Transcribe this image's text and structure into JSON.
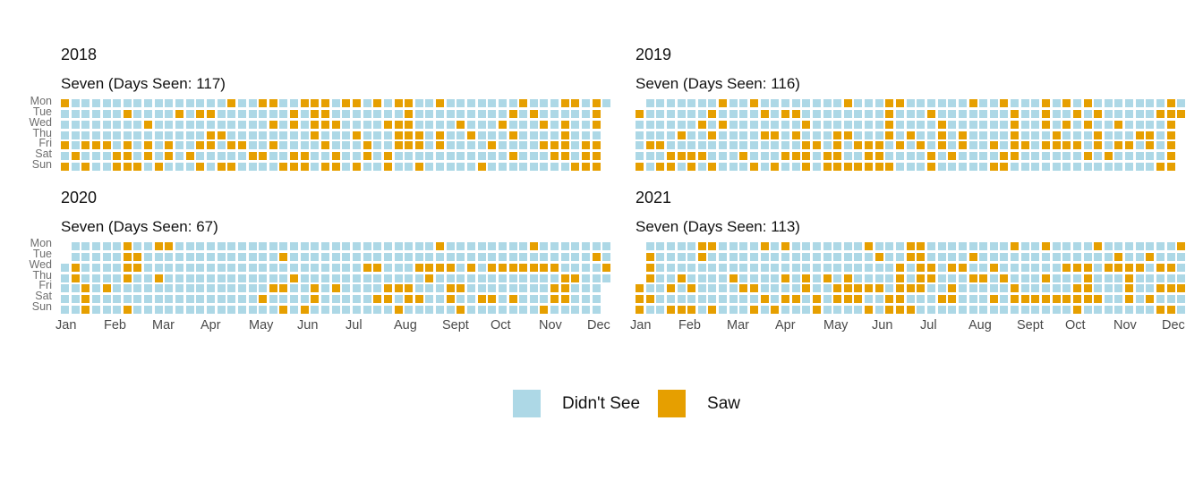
{
  "page": {
    "background": "#ffffff"
  },
  "colors": {
    "didnt_see": "#ADD8E6",
    "saw": "#E69F00"
  },
  "chart_data": {
    "type": "heatmap",
    "description": "Calendar heatmap, one panel per year; rows are weekdays Mon-Sun, columns are weeks 1-53; 1 = Saw (orange), 0 = Didn't See (light blue), . = no such day in that year",
    "weekday_rows": [
      "Mon",
      "Tue",
      "Wed",
      "Thu",
      "Fri",
      "Sat",
      "Sun"
    ],
    "months": [
      "Jan",
      "Feb",
      "Mar",
      "Apr",
      "May",
      "Jun",
      "Jul",
      "Aug",
      "Sept",
      "Oct",
      "Nov",
      "Dec"
    ],
    "weeks_per_year": 53,
    "legend": [
      {
        "label": "Didn't See",
        "color": "#ADD8E6"
      },
      {
        "label": "Saw",
        "color": "#E69F00"
      }
    ],
    "years": [
      {
        "year": "2018",
        "subtitle": "Seven (Days Seen: 117)",
        "days_seen": 117,
        "grid": [
          "10000000000000001001100111011010110010000000100011010",
          "0000001000010110000000101100000001000000000101000001.",
          "0000000010000000000010101110000111000010001000101001.",
          "0000000000000011000000001000100011101001000100001000.",
          "1011101010100110110010000100010011101000010000111011.",
          "0100011010101000001100110010010100000000000100011011.",
          "1010011101000101100001110110100100100000100000000111."
        ]
      },
      {
        "year": "2019",
        "subtitle": "Seven (Days Seen: 116)",
        "days_seen": 116,
        "grid": [
          ".0000000100100000000100011000000100100010101000000010",
          "10000001000010110000000010001000000010010010100000111",
          "0000001010000000100000001000010000001001010100100001.",
          "0000100100001101000110001010010100001000100010001101.",
          "0110000000000000110101110101010100101101111010110101.",
          "0001111000100011101100110000101000011000000101000001.",
          "1011010100010100101111111000100000110000000000000011."
        ]
      },
      {
        "year": "2020",
        "subtitle": "Seven (Days Seen: 67)",
        "days_seen": 67,
        "grid": [
          ".0000010011000000000000000000000000010000000010000000",
          ".0000011000000000000010000000000000000000000000000010",
          "01000011000000000000000000000110001111010111111100001",
          "01000010010000000000001000000000000100000000000011000",
          "0010100000000000000011001010000111000110000000011000.",
          "0010000000000000000100001000001101100100110100011000.",
          "0010001000000000000001010000000010000010000000100000."
        ]
      },
      {
        "year": "2021",
        "subtitle": "Seven (Days Seen: 113)",
        "days_seen": 113,
        "grid": [
          ".0000011000010100000001000110000000010010000100000001",
          ".1000010000000000000000100110000100000000000001001000",
          ".1000000000000000000000001011011001000000111011110110",
          ".1001000010000101010100001011000110100010001000100000",
          "10010100001100001001111101110010000010000011000100111",
          "11000000000010110101110011000110001011111111100101000",
          "10011101000101000100001011100000000000000010000000110"
        ]
      }
    ]
  },
  "layout_labels": {
    "day_labels": [
      "Mon",
      "Tue",
      "Wed",
      "Thu",
      "Fri",
      "Sat",
      "Sun"
    ]
  }
}
